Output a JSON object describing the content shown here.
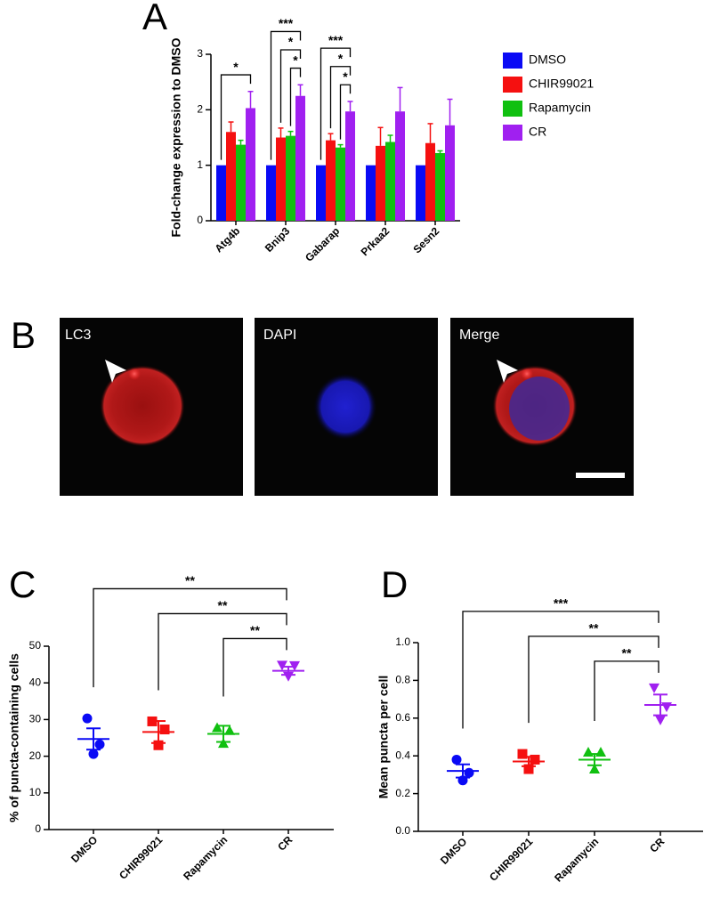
{
  "chart_data": [
    {
      "type": "bar",
      "panel": "A",
      "ylabel": "Fold-change expression to DMSO",
      "categories": [
        "Atg4b",
        "Bnip3",
        "Gabarap",
        "Prkaa2",
        "Sesn2"
      ],
      "series": [
        {
          "name": "DMSO",
          "color": "#0a0af5",
          "values": [
            1,
            1,
            1,
            1,
            1
          ]
        },
        {
          "name": "CHIR99021",
          "color": "#f51010",
          "values": [
            1.6,
            1.5,
            1.45,
            1.35,
            1.4
          ],
          "errors": [
            0.18,
            0.17,
            0.12,
            0.33,
            0.35
          ]
        },
        {
          "name": "Rapamycin",
          "color": "#10c010",
          "values": [
            1.37,
            1.53,
            1.32,
            1.42,
            1.22
          ],
          "errors": [
            0.08,
            0.08,
            0.05,
            0.12,
            0.04
          ]
        },
        {
          "name": "CR",
          "color": "#a020f0",
          "values": [
            2.03,
            2.25,
            1.97,
            1.97,
            1.72
          ],
          "errors": [
            0.3,
            0.2,
            0.18,
            0.43,
            0.47
          ]
        }
      ],
      "ylim": [
        0,
        3
      ],
      "yticks": [
        0,
        1,
        2,
        3
      ],
      "legend": "right",
      "annotations": [
        {
          "text": "*",
          "category": "Atg4b",
          "from": "DMSO",
          "to": "CR"
        },
        {
          "text": "*",
          "category": "Bnip3",
          "from": "Rapamycin",
          "to": "CR"
        },
        {
          "text": "*",
          "category": "Bnip3",
          "from": "CHIR99021",
          "to": "CR"
        },
        {
          "text": "***",
          "category": "Bnip3",
          "from": "DMSO",
          "to": "CR"
        },
        {
          "text": "*",
          "category": "Gabarap",
          "from": "Rapamycin",
          "to": "CR"
        },
        {
          "text": "*",
          "category": "Gabarap",
          "from": "CHIR99021",
          "to": "CR"
        },
        {
          "text": "***",
          "category": "Gabarap",
          "from": "DMSO",
          "to": "CR"
        }
      ]
    },
    {
      "type": "strip",
      "panel": "C",
      "ylabel": "% of puncta-containing cells",
      "categories": [
        "DMSO",
        "CHIR99021",
        "Rapamycin",
        "CR"
      ],
      "colors": [
        "#0a0af5",
        "#f51010",
        "#10c010",
        "#a020f0"
      ],
      "markers": [
        "circle",
        "square",
        "triangle",
        "triangle-down"
      ],
      "points": [
        [
          30.3,
          20.6,
          23.2
        ],
        [
          29.5,
          23.0,
          27.3
        ],
        [
          27.8,
          23.5,
          27.0
        ],
        [
          44.8,
          41.8,
          44.7
        ]
      ],
      "means": [
        24.7,
        26.6,
        26.1,
        43.3
      ],
      "errors": [
        2.9,
        3.0,
        2.2,
        1.1
      ],
      "ylim": [
        0,
        50
      ],
      "yticks": [
        0,
        10,
        20,
        30,
        40,
        50
      ],
      "annotations": [
        {
          "text": "**",
          "from": "DMSO",
          "to": "CR"
        },
        {
          "text": "**",
          "from": "CHIR99021",
          "to": "CR"
        },
        {
          "text": "**",
          "from": "Rapamycin",
          "to": "CR"
        }
      ]
    },
    {
      "type": "strip",
      "panel": "D",
      "ylabel": "Mean puncta per cell",
      "categories": [
        "DMSO",
        "CHIR99021",
        "Rapamycin",
        "CR"
      ],
      "colors": [
        "#0a0af5",
        "#f51010",
        "#10c010",
        "#a020f0"
      ],
      "markers": [
        "circle",
        "square",
        "triangle",
        "triangle-down"
      ],
      "points": [
        [
          0.38,
          0.27,
          0.31
        ],
        [
          0.41,
          0.33,
          0.38
        ],
        [
          0.42,
          0.33,
          0.42
        ],
        [
          0.76,
          0.59,
          0.66
        ]
      ],
      "means": [
        0.32,
        0.37,
        0.38,
        0.67
      ],
      "errors": [
        0.035,
        0.025,
        0.03,
        0.055
      ],
      "ylim": [
        0,
        1
      ],
      "yticks": [
        {
          "value": 0,
          "label": "0.0"
        },
        0.2,
        0.4,
        0.6,
        0.8,
        {
          "value": 1,
          "label": "1.0"
        }
      ],
      "annotations": [
        {
          "text": "***",
          "from": "DMSO",
          "to": "CR"
        },
        {
          "text": "**",
          "from": "CHIR99021",
          "to": "CR"
        },
        {
          "text": "**",
          "from": "Rapamycin",
          "to": "CR"
        }
      ]
    }
  ],
  "images": {
    "panel": "B",
    "labels": [
      "LC3",
      "DAPI",
      "Merge"
    ]
  }
}
